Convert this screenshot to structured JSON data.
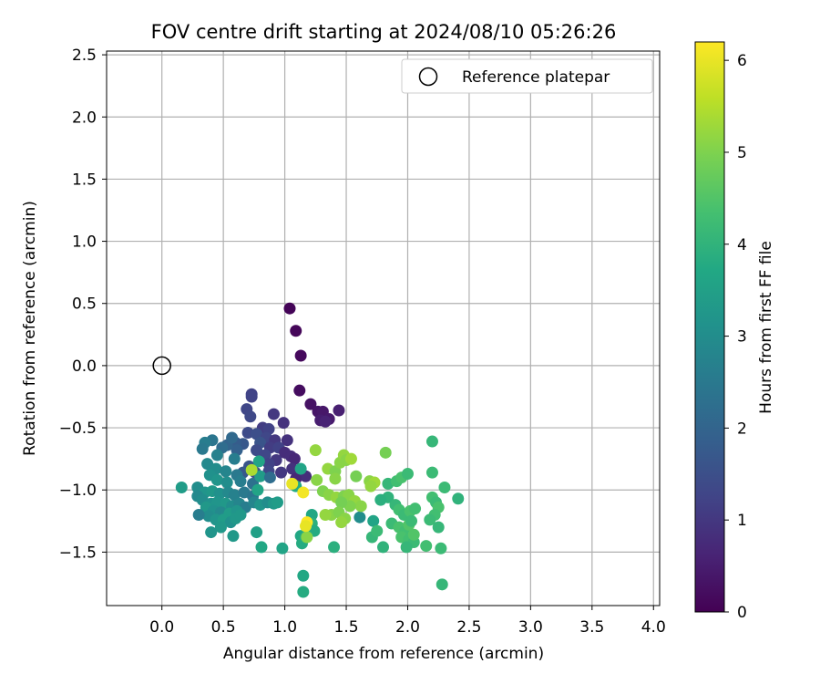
{
  "chart_data": {
    "type": "scatter",
    "title": "FOV centre drift starting at 2024/08/10 05:26:26",
    "xlabel": "Angular distance from reference (arcmin)",
    "ylabel": "Rotation from reference (arcmin)",
    "xlim": [
      -0.45,
      4.05
    ],
    "ylim": [
      -1.93,
      2.53
    ],
    "xticks": [
      "0.0",
      "0.5",
      "1.0",
      "1.5",
      "2.0",
      "2.5",
      "3.0",
      "3.5",
      "4.0"
    ],
    "yticks": [
      "2.5",
      "2.0",
      "1.5",
      "1.0",
      "0.5",
      "0.0",
      "−0.5",
      "−1.0",
      "−1.5"
    ],
    "xtick_values": [
      0,
      0.5,
      1,
      1.5,
      2,
      2.5,
      3,
      3.5,
      4
    ],
    "ytick_values": [
      2.5,
      2,
      1.5,
      1,
      0.5,
      0,
      -0.5,
      -1,
      -1.5
    ],
    "grid": true,
    "legend": {
      "placement": "top-right",
      "entries": [
        "Reference platepar"
      ]
    },
    "reference_point": {
      "x": 0.0,
      "y": 0.0
    },
    "colorbar": {
      "label": "Hours from first FF file",
      "range": [
        0,
        6.2
      ],
      "ticks": [
        "0",
        "1",
        "2",
        "3",
        "4",
        "5",
        "6"
      ],
      "tick_values": [
        0,
        1,
        2,
        3,
        4,
        5,
        6
      ],
      "colormap": "viridis"
    },
    "points": [
      {
        "x": 1.04,
        "y": 0.46,
        "c": 0.05
      },
      {
        "x": 1.09,
        "y": 0.28,
        "c": 0.1
      },
      {
        "x": 1.13,
        "y": 0.08,
        "c": 0.15
      },
      {
        "x": 1.12,
        "y": -0.2,
        "c": 0.2
      },
      {
        "x": 1.21,
        "y": -0.31,
        "c": 0.3
      },
      {
        "x": 1.27,
        "y": -0.37,
        "c": 0.35
      },
      {
        "x": 1.31,
        "y": -0.37,
        "c": 0.4
      },
      {
        "x": 1.36,
        "y": -0.43,
        "c": 0.45
      },
      {
        "x": 1.29,
        "y": -0.44,
        "c": 0.5
      },
      {
        "x": 1.44,
        "y": -0.36,
        "c": 0.55
      },
      {
        "x": 1.33,
        "y": -0.45,
        "c": 0.6
      },
      {
        "x": 0.73,
        "y": -0.23,
        "c": 1.2
      },
      {
        "x": 0.73,
        "y": -0.25,
        "c": 1.25
      },
      {
        "x": 0.69,
        "y": -0.35,
        "c": 1.3
      },
      {
        "x": 0.72,
        "y": -0.41,
        "c": 1.35
      },
      {
        "x": 0.91,
        "y": -0.39,
        "c": 1.0
      },
      {
        "x": 0.99,
        "y": -0.46,
        "c": 0.9
      },
      {
        "x": 0.82,
        "y": -0.5,
        "c": 1.1
      },
      {
        "x": 0.87,
        "y": -0.51,
        "c": 1.2
      },
      {
        "x": 0.7,
        "y": -0.54,
        "c": 1.4
      },
      {
        "x": 0.77,
        "y": -0.55,
        "c": 1.5
      },
      {
        "x": 0.85,
        "y": -0.58,
        "c": 1.3
      },
      {
        "x": 0.92,
        "y": -0.6,
        "c": 1.0
      },
      {
        "x": 1.02,
        "y": -0.6,
        "c": 0.9
      },
      {
        "x": 0.8,
        "y": -0.62,
        "c": 1.6
      },
      {
        "x": 0.66,
        "y": -0.63,
        "c": 1.7
      },
      {
        "x": 0.6,
        "y": -0.62,
        "c": 1.8
      },
      {
        "x": 0.88,
        "y": -0.66,
        "c": 1.1
      },
      {
        "x": 0.95,
        "y": -0.66,
        "c": 1.2
      },
      {
        "x": 0.77,
        "y": -0.68,
        "c": 1.4
      },
      {
        "x": 0.84,
        "y": -0.72,
        "c": 1.3
      },
      {
        "x": 1.0,
        "y": -0.7,
        "c": 0.8
      },
      {
        "x": 1.05,
        "y": -0.73,
        "c": 0.8
      },
      {
        "x": 1.08,
        "y": -0.75,
        "c": 0.7
      },
      {
        "x": 0.93,
        "y": -0.76,
        "c": 1.0
      },
      {
        "x": 0.87,
        "y": -0.79,
        "c": 1.2
      },
      {
        "x": 0.71,
        "y": -0.81,
        "c": 1.6
      },
      {
        "x": 1.06,
        "y": -0.83,
        "c": 0.9
      },
      {
        "x": 0.97,
        "y": -0.86,
        "c": 1.0
      },
      {
        "x": 0.87,
        "y": -0.85,
        "c": 1.3
      },
      {
        "x": 0.76,
        "y": -0.86,
        "c": 1.5
      },
      {
        "x": 0.66,
        "y": -0.86,
        "c": 1.7
      },
      {
        "x": 1.17,
        "y": -0.89,
        "c": 0.8
      },
      {
        "x": 1.09,
        "y": -0.91,
        "c": 0.7
      },
      {
        "x": 0.61,
        "y": -0.68,
        "c": 1.9
      },
      {
        "x": 0.53,
        "y": -0.64,
        "c": 2.0
      },
      {
        "x": 0.57,
        "y": -0.58,
        "c": 2.1
      },
      {
        "x": 0.49,
        "y": -0.66,
        "c": 2.2
      },
      {
        "x": 0.41,
        "y": -0.6,
        "c": 2.4
      },
      {
        "x": 0.35,
        "y": -0.62,
        "c": 2.6
      },
      {
        "x": 0.33,
        "y": -0.67,
        "c": 2.5
      },
      {
        "x": 0.45,
        "y": -0.72,
        "c": 2.7
      },
      {
        "x": 0.59,
        "y": -0.75,
        "c": 2.6
      },
      {
        "x": 0.37,
        "y": -0.79,
        "c": 2.9
      },
      {
        "x": 0.44,
        "y": -0.83,
        "c": 3.0
      },
      {
        "x": 0.52,
        "y": -0.85,
        "c": 2.8
      },
      {
        "x": 0.61,
        "y": -0.88,
        "c": 2.5
      },
      {
        "x": 0.39,
        "y": -0.88,
        "c": 3.1
      },
      {
        "x": 0.45,
        "y": -0.92,
        "c": 3.2
      },
      {
        "x": 0.53,
        "y": -0.94,
        "c": 3.0
      },
      {
        "x": 0.64,
        "y": -0.93,
        "c": 2.6
      },
      {
        "x": 0.74,
        "y": -0.95,
        "c": 2.3
      },
      {
        "x": 0.8,
        "y": -0.89,
        "c": 3.4
      },
      {
        "x": 0.79,
        "y": -0.77,
        "c": 3.6
      },
      {
        "x": 0.88,
        "y": -0.9,
        "c": 2.2
      },
      {
        "x": 0.16,
        "y": -0.98,
        "c": 3.4
      },
      {
        "x": 0.29,
        "y": -0.98,
        "c": 3.0
      },
      {
        "x": 0.35,
        "y": -1.02,
        "c": 3.2
      },
      {
        "x": 0.41,
        "y": -1.01,
        "c": 3.3
      },
      {
        "x": 0.47,
        "y": -1.03,
        "c": 3.1
      },
      {
        "x": 0.54,
        "y": -1.02,
        "c": 2.9
      },
      {
        "x": 0.59,
        "y": -1.04,
        "c": 2.7
      },
      {
        "x": 0.67,
        "y": -1.02,
        "c": 2.5
      },
      {
        "x": 0.74,
        "y": -1.05,
        "c": 2.4
      },
      {
        "x": 0.29,
        "y": -1.05,
        "c": 2.9
      },
      {
        "x": 0.33,
        "y": -1.08,
        "c": 3.0
      },
      {
        "x": 0.4,
        "y": -1.11,
        "c": 3.1
      },
      {
        "x": 0.45,
        "y": -1.1,
        "c": 3.2
      },
      {
        "x": 0.52,
        "y": -1.11,
        "c": 3.3
      },
      {
        "x": 0.57,
        "y": -1.13,
        "c": 3.0
      },
      {
        "x": 0.63,
        "y": -1.11,
        "c": 2.8
      },
      {
        "x": 0.68,
        "y": -1.14,
        "c": 2.6
      },
      {
        "x": 0.75,
        "y": -1.1,
        "c": 2.8
      },
      {
        "x": 0.8,
        "y": -1.12,
        "c": 3.2
      },
      {
        "x": 0.86,
        "y": -1.1,
        "c": 3.0
      },
      {
        "x": 0.91,
        "y": -1.11,
        "c": 3.3
      },
      {
        "x": 0.36,
        "y": -1.14,
        "c": 3.3
      },
      {
        "x": 0.42,
        "y": -1.17,
        "c": 3.1
      },
      {
        "x": 0.48,
        "y": -1.18,
        "c": 2.9
      },
      {
        "x": 0.55,
        "y": -1.19,
        "c": 3.4
      },
      {
        "x": 0.61,
        "y": -1.17,
        "c": 3.2
      },
      {
        "x": 0.38,
        "y": -1.21,
        "c": 3.0
      },
      {
        "x": 0.44,
        "y": -1.24,
        "c": 3.2
      },
      {
        "x": 0.5,
        "y": -1.24,
        "c": 3.4
      },
      {
        "x": 0.56,
        "y": -1.26,
        "c": 3.1
      },
      {
        "x": 0.6,
        "y": -1.23,
        "c": 3.3
      },
      {
        "x": 0.3,
        "y": -1.2,
        "c": 2.6
      },
      {
        "x": 0.48,
        "y": -1.3,
        "c": 3.3
      },
      {
        "x": 0.4,
        "y": -1.34,
        "c": 3.2
      },
      {
        "x": 0.58,
        "y": -1.37,
        "c": 3.3
      },
      {
        "x": 0.77,
        "y": -1.34,
        "c": 3.5
      },
      {
        "x": 0.81,
        "y": -1.46,
        "c": 3.7
      },
      {
        "x": 0.98,
        "y": -1.47,
        "c": 3.6
      },
      {
        "x": 0.78,
        "y": -1.0,
        "c": 3.6
      },
      {
        "x": 0.94,
        "y": -1.1,
        "c": 3.4
      },
      {
        "x": 0.64,
        "y": -1.2,
        "c": 3.3
      },
      {
        "x": 1.13,
        "y": -0.83,
        "c": 3.6
      },
      {
        "x": 1.09,
        "y": -0.97,
        "c": 3.8
      },
      {
        "x": 1.22,
        "y": -1.2,
        "c": 3.7
      },
      {
        "x": 1.22,
        "y": -1.27,
        "c": 3.9
      },
      {
        "x": 1.24,
        "y": -1.33,
        "c": 3.8
      },
      {
        "x": 1.13,
        "y": -1.37,
        "c": 3.7
      },
      {
        "x": 1.14,
        "y": -1.43,
        "c": 3.8
      },
      {
        "x": 1.17,
        "y": -1.38,
        "c": 3.9
      },
      {
        "x": 1.15,
        "y": -1.69,
        "c": 3.7
      },
      {
        "x": 1.15,
        "y": -1.82,
        "c": 3.8
      },
      {
        "x": 1.4,
        "y": -1.46,
        "c": 3.9
      },
      {
        "x": 1.61,
        "y": -1.22,
        "c": 3.0
      },
      {
        "x": 1.72,
        "y": -1.25,
        "c": 3.6
      },
      {
        "x": 1.71,
        "y": -1.38,
        "c": 4.1
      },
      {
        "x": 1.75,
        "y": -1.33,
        "c": 4.2
      },
      {
        "x": 1.8,
        "y": -1.46,
        "c": 4.0
      },
      {
        "x": 1.84,
        "y": -1.06,
        "c": 4.0
      },
      {
        "x": 1.78,
        "y": -1.08,
        "c": 3.9
      },
      {
        "x": 1.84,
        "y": -0.95,
        "c": 4.1
      },
      {
        "x": 1.91,
        "y": -0.93,
        "c": 4.3
      },
      {
        "x": 1.95,
        "y": -0.9,
        "c": 4.4
      },
      {
        "x": 2.0,
        "y": -0.87,
        "c": 4.2
      },
      {
        "x": 1.82,
        "y": -0.7,
        "c": 4.9
      },
      {
        "x": 1.9,
        "y": -1.12,
        "c": 4.1
      },
      {
        "x": 1.93,
        "y": -1.16,
        "c": 4.3
      },
      {
        "x": 1.97,
        "y": -1.2,
        "c": 4.2
      },
      {
        "x": 2.02,
        "y": -1.17,
        "c": 4.4
      },
      {
        "x": 2.06,
        "y": -1.15,
        "c": 4.3
      },
      {
        "x": 1.87,
        "y": -1.27,
        "c": 4.2
      },
      {
        "x": 1.93,
        "y": -1.3,
        "c": 4.4
      },
      {
        "x": 1.98,
        "y": -1.33,
        "c": 4.3
      },
      {
        "x": 2.01,
        "y": -1.28,
        "c": 4.5
      },
      {
        "x": 2.03,
        "y": -1.25,
        "c": 4.2
      },
      {
        "x": 1.95,
        "y": -1.38,
        "c": 4.4
      },
      {
        "x": 2.01,
        "y": -1.4,
        "c": 4.3
      },
      {
        "x": 2.05,
        "y": -1.42,
        "c": 4.2
      },
      {
        "x": 1.99,
        "y": -1.46,
        "c": 4.1
      },
      {
        "x": 2.05,
        "y": -1.36,
        "c": 4.5
      },
      {
        "x": 2.15,
        "y": -1.45,
        "c": 4.3
      },
      {
        "x": 2.2,
        "y": -0.61,
        "c": 4.1
      },
      {
        "x": 2.2,
        "y": -0.86,
        "c": 4.2
      },
      {
        "x": 2.2,
        "y": -1.06,
        "c": 4.3
      },
      {
        "x": 2.23,
        "y": -1.1,
        "c": 4.2
      },
      {
        "x": 2.25,
        "y": -1.14,
        "c": 4.4
      },
      {
        "x": 2.22,
        "y": -1.2,
        "c": 4.3
      },
      {
        "x": 2.18,
        "y": -1.24,
        "c": 4.2
      },
      {
        "x": 2.25,
        "y": -1.3,
        "c": 4.1
      },
      {
        "x": 2.27,
        "y": -1.47,
        "c": 4.2
      },
      {
        "x": 2.3,
        "y": -0.98,
        "c": 4.2
      },
      {
        "x": 2.41,
        "y": -1.07,
        "c": 4.0
      },
      {
        "x": 2.28,
        "y": -1.76,
        "c": 4.1
      },
      {
        "x": 1.25,
        "y": -0.68,
        "c": 5.2
      },
      {
        "x": 1.26,
        "y": -0.92,
        "c": 5.1
      },
      {
        "x": 1.35,
        "y": -0.83,
        "c": 5.2
      },
      {
        "x": 1.41,
        "y": -0.85,
        "c": 5.0
      },
      {
        "x": 1.45,
        "y": -0.78,
        "c": 5.1
      },
      {
        "x": 1.48,
        "y": -0.72,
        "c": 5.2
      },
      {
        "x": 1.5,
        "y": -0.76,
        "c": 5.1
      },
      {
        "x": 1.54,
        "y": -0.75,
        "c": 5.3
      },
      {
        "x": 1.41,
        "y": -0.91,
        "c": 5.1
      },
      {
        "x": 1.58,
        "y": -0.89,
        "c": 4.9
      },
      {
        "x": 1.31,
        "y": -1.01,
        "c": 5.0
      },
      {
        "x": 1.36,
        "y": -1.04,
        "c": 5.1
      },
      {
        "x": 1.42,
        "y": -1.06,
        "c": 5.2
      },
      {
        "x": 1.48,
        "y": -1.05,
        "c": 5.0
      },
      {
        "x": 1.52,
        "y": -1.04,
        "c": 5.1
      },
      {
        "x": 1.57,
        "y": -1.09,
        "c": 5.2
      },
      {
        "x": 1.62,
        "y": -1.13,
        "c": 5.1
      },
      {
        "x": 1.53,
        "y": -1.13,
        "c": 5.0
      },
      {
        "x": 1.46,
        "y": -1.1,
        "c": 4.9
      },
      {
        "x": 1.38,
        "y": -1.2,
        "c": 5.1
      },
      {
        "x": 1.33,
        "y": -1.2,
        "c": 5.2
      },
      {
        "x": 1.44,
        "y": -1.18,
        "c": 5.0
      },
      {
        "x": 1.49,
        "y": -1.23,
        "c": 5.1
      },
      {
        "x": 1.46,
        "y": -1.26,
        "c": 5.2
      },
      {
        "x": 1.69,
        "y": -0.93,
        "c": 5.1
      },
      {
        "x": 1.73,
        "y": -0.94,
        "c": 5.3
      },
      {
        "x": 1.7,
        "y": -0.97,
        "c": 5.2
      },
      {
        "x": 1.18,
        "y": -1.38,
        "c": 5.1
      },
      {
        "x": 0.73,
        "y": -0.84,
        "c": 5.4
      },
      {
        "x": 1.06,
        "y": -0.95,
        "c": 6.0
      },
      {
        "x": 1.15,
        "y": -1.02,
        "c": 6.1
      },
      {
        "x": 1.18,
        "y": -1.26,
        "c": 6.2
      },
      {
        "x": 1.17,
        "y": -1.29,
        "c": 6.0
      }
    ]
  }
}
